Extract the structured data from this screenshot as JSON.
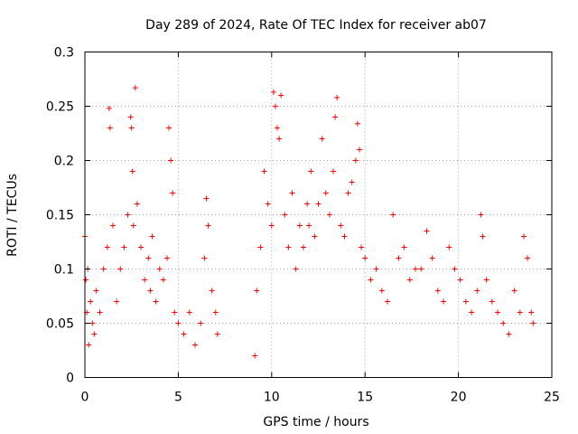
{
  "chart_data": {
    "type": "scatter",
    "title": "Day 289 of 2024, Rate Of TEC Index for receiver ab07",
    "xlabel": "GPS time / hours",
    "ylabel": "ROTI / TECUs",
    "xlim": [
      0,
      25
    ],
    "ylim": [
      0,
      0.3
    ],
    "xticks": [
      0,
      5,
      10,
      15,
      20,
      25
    ],
    "yticks": [
      0,
      0.05,
      0.1,
      0.15,
      0.2,
      0.25,
      0.3
    ],
    "xtick_labels": [
      "0",
      "5",
      "10",
      "15",
      "20",
      "25"
    ],
    "ytick_labels": [
      "0",
      "0.05",
      "0.1",
      "0.15",
      "0.2",
      "0.25",
      "0.3"
    ],
    "grid": true,
    "marker": "+",
    "color": "#ff0000",
    "series": [
      {
        "name": "ROTI",
        "x": [
          0.0,
          0.05,
          0.1,
          0.15,
          0.2,
          0.3,
          0.4,
          0.5,
          0.6,
          0.8,
          1.0,
          1.2,
          1.3,
          1.35,
          1.5,
          1.7,
          1.9,
          2.1,
          2.3,
          2.45,
          2.5,
          2.55,
          2.6,
          2.7,
          2.8,
          3.0,
          3.2,
          3.4,
          3.5,
          3.6,
          3.8,
          4.0,
          4.2,
          4.4,
          4.5,
          4.6,
          4.7,
          4.8,
          5.0,
          5.3,
          5.6,
          5.9,
          6.2,
          6.4,
          6.5,
          6.6,
          6.8,
          7.0,
          7.1,
          9.1,
          9.2,
          9.4,
          9.6,
          9.8,
          10.0,
          10.1,
          10.2,
          10.3,
          10.4,
          10.5,
          10.7,
          10.9,
          11.1,
          11.3,
          11.5,
          11.7,
          11.9,
          12.0,
          12.1,
          12.3,
          12.5,
          12.7,
          12.9,
          13.1,
          13.3,
          13.4,
          13.5,
          13.7,
          13.9,
          14.1,
          14.3,
          14.5,
          14.6,
          14.7,
          14.8,
          15.0,
          15.3,
          15.6,
          15.9,
          16.2,
          16.5,
          16.8,
          17.1,
          17.4,
          17.7,
          18.0,
          18.3,
          18.6,
          18.9,
          19.2,
          19.5,
          19.8,
          20.1,
          20.4,
          20.7,
          21.0,
          21.2,
          21.3,
          21.5,
          21.8,
          22.1,
          22.4,
          22.7,
          23.0,
          23.3,
          23.5,
          23.7,
          23.9,
          24.0
        ],
        "y": [
          0.13,
          0.09,
          0.06,
          0.1,
          0.03,
          0.07,
          0.05,
          0.04,
          0.08,
          0.06,
          0.1,
          0.12,
          0.248,
          0.23,
          0.14,
          0.07,
          0.1,
          0.12,
          0.15,
          0.24,
          0.23,
          0.19,
          0.14,
          0.267,
          0.16,
          0.12,
          0.09,
          0.11,
          0.08,
          0.13,
          0.07,
          0.1,
          0.09,
          0.11,
          0.23,
          0.2,
          0.17,
          0.06,
          0.05,
          0.04,
          0.06,
          0.03,
          0.05,
          0.11,
          0.165,
          0.14,
          0.08,
          0.06,
          0.04,
          0.02,
          0.08,
          0.12,
          0.19,
          0.16,
          0.14,
          0.263,
          0.25,
          0.23,
          0.22,
          0.26,
          0.15,
          0.12,
          0.17,
          0.1,
          0.14,
          0.12,
          0.16,
          0.14,
          0.19,
          0.13,
          0.16,
          0.22,
          0.17,
          0.15,
          0.19,
          0.24,
          0.258,
          0.14,
          0.13,
          0.17,
          0.18,
          0.2,
          0.234,
          0.21,
          0.12,
          0.11,
          0.09,
          0.1,
          0.08,
          0.07,
          0.15,
          0.11,
          0.12,
          0.09,
          0.1,
          0.1,
          0.135,
          0.11,
          0.08,
          0.07,
          0.12,
          0.1,
          0.09,
          0.07,
          0.06,
          0.08,
          0.15,
          0.13,
          0.09,
          0.07,
          0.06,
          0.05,
          0.04,
          0.08,
          0.06,
          0.13,
          0.11,
          0.06,
          0.05
        ]
      }
    ]
  }
}
